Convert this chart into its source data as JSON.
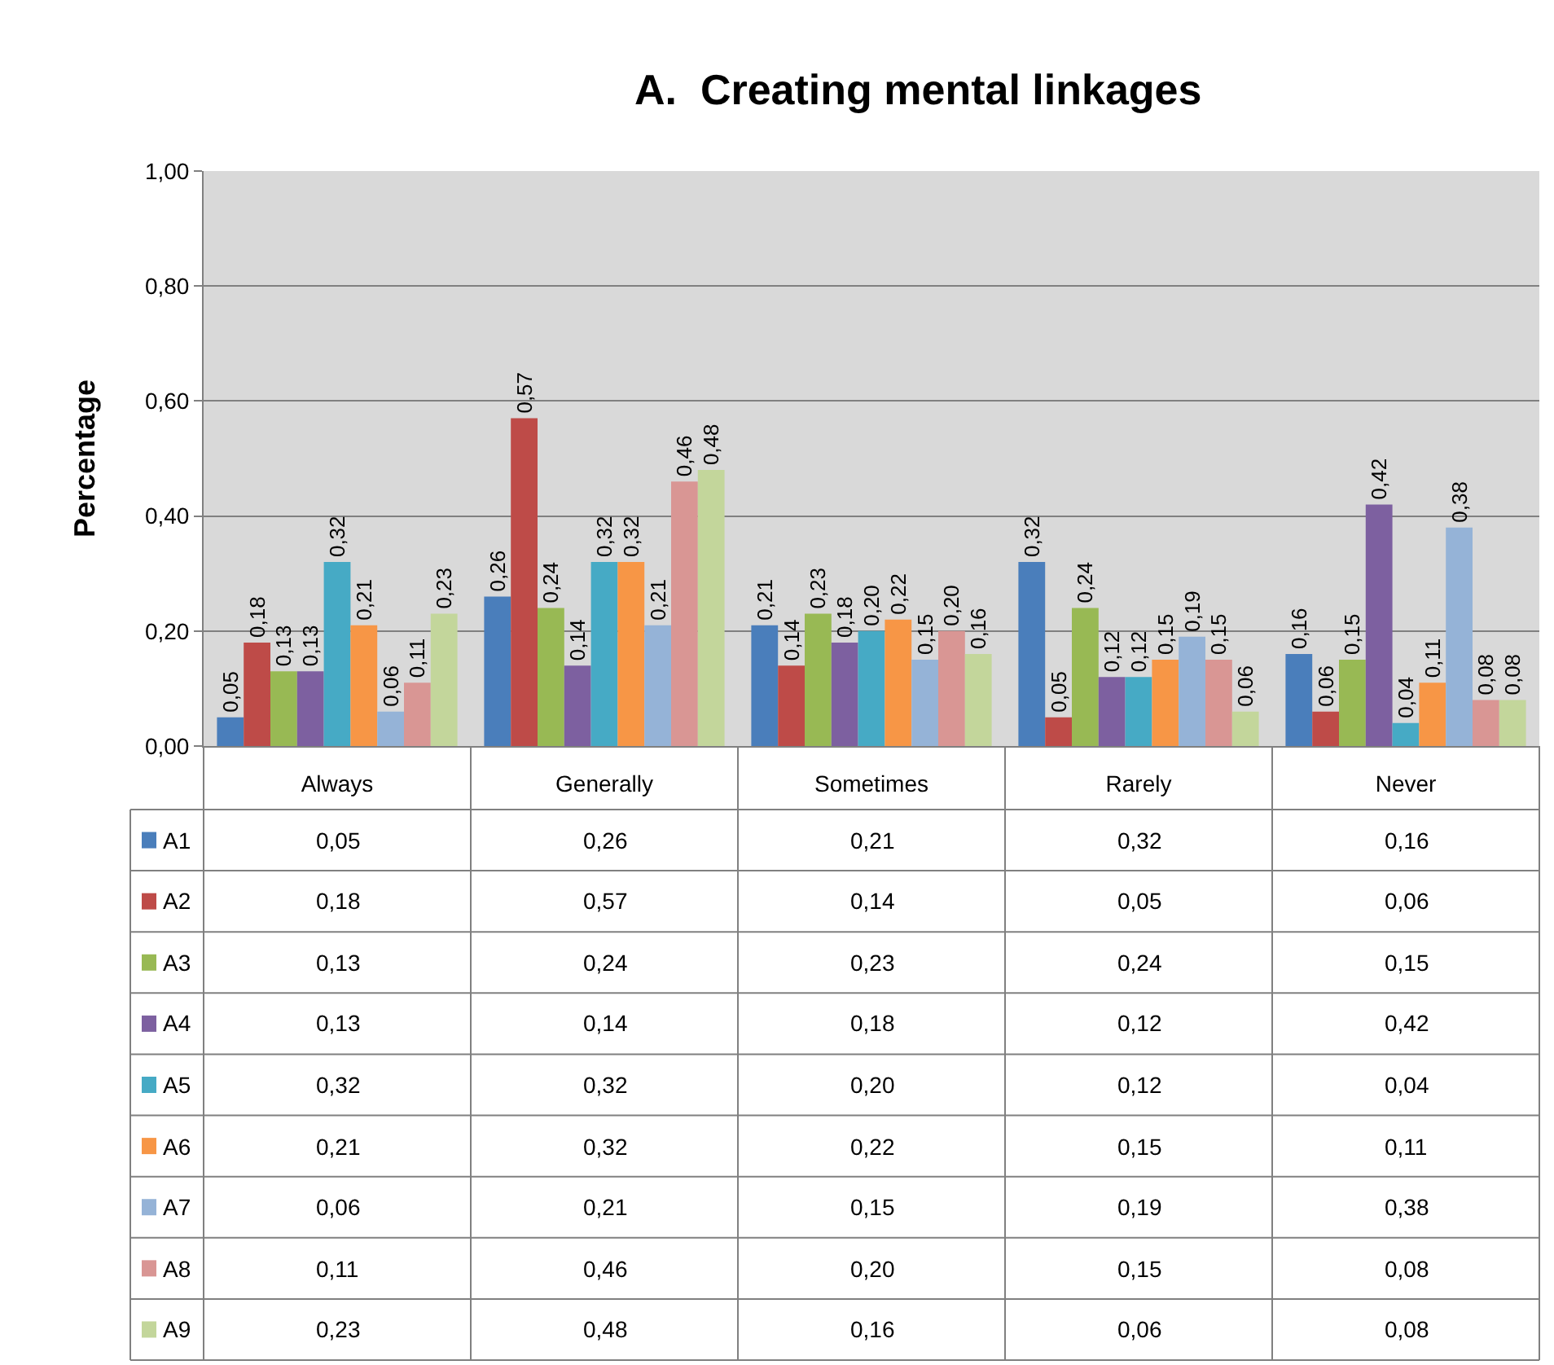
{
  "chart_data": {
    "type": "bar",
    "title": "A.  Creating mental linkages",
    "ylabel": "Percentage",
    "categories": [
      "Always",
      "Generally",
      "Sometimes",
      "Rarely",
      "Never"
    ],
    "series": [
      {
        "name": "A1",
        "color": "#4a7ebb",
        "values": [
          0.05,
          0.26,
          0.21,
          0.32,
          0.16
        ],
        "value_labels": [
          "0,05",
          "0,26",
          "0,21",
          "0,32",
          "0,16"
        ]
      },
      {
        "name": "A2",
        "color": "#be4b48",
        "values": [
          0.18,
          0.57,
          0.14,
          0.05,
          0.06
        ],
        "value_labels": [
          "0,18",
          "0,57",
          "0,14",
          "0,05",
          "0,06"
        ]
      },
      {
        "name": "A3",
        "color": "#98b954",
        "values": [
          0.13,
          0.24,
          0.23,
          0.24,
          0.15
        ],
        "value_labels": [
          "0,13",
          "0,24",
          "0,23",
          "0,24",
          "0,15"
        ]
      },
      {
        "name": "A4",
        "color": "#7d60a0",
        "values": [
          0.13,
          0.14,
          0.18,
          0.12,
          0.42
        ],
        "value_labels": [
          "0,13",
          "0,14",
          "0,18",
          "0,12",
          "0,42"
        ]
      },
      {
        "name": "A5",
        "color": "#46aac5",
        "values": [
          0.32,
          0.32,
          0.2,
          0.12,
          0.04
        ],
        "value_labels": [
          "0,32",
          "0,32",
          "0,20",
          "0,12",
          "0,04"
        ]
      },
      {
        "name": "A6",
        "color": "#f79646",
        "values": [
          0.21,
          0.32,
          0.22,
          0.15,
          0.11
        ],
        "value_labels": [
          "0,21",
          "0,32",
          "0,22",
          "0,15",
          "0,11"
        ]
      },
      {
        "name": "A7",
        "color": "#95b3d7",
        "values": [
          0.06,
          0.21,
          0.15,
          0.19,
          0.38
        ],
        "value_labels": [
          "0,06",
          "0,21",
          "0,15",
          "0,19",
          "0,38"
        ]
      },
      {
        "name": "A8",
        "color": "#d99694",
        "values": [
          0.11,
          0.46,
          0.2,
          0.15,
          0.08
        ],
        "value_labels": [
          "0,11",
          "0,46",
          "0,20",
          "0,15",
          "0,08"
        ]
      },
      {
        "name": "A9",
        "color": "#c3d69b",
        "values": [
          0.23,
          0.48,
          0.16,
          0.06,
          0.08
        ],
        "value_labels": [
          "0,23",
          "0,48",
          "0,16",
          "0,06",
          "0,08"
        ]
      }
    ],
    "ylim": [
      0,
      1
    ],
    "yticks": [
      {
        "value": 0,
        "label": "0,00"
      },
      {
        "value": 0.2,
        "label": "0,20"
      },
      {
        "value": 0.4,
        "label": "0,40"
      },
      {
        "value": 0.6,
        "label": "0,60"
      },
      {
        "value": 0.8,
        "label": "0,80"
      },
      {
        "value": 1,
        "label": "1,00"
      }
    ],
    "grid": "y",
    "legend": "bottom"
  }
}
